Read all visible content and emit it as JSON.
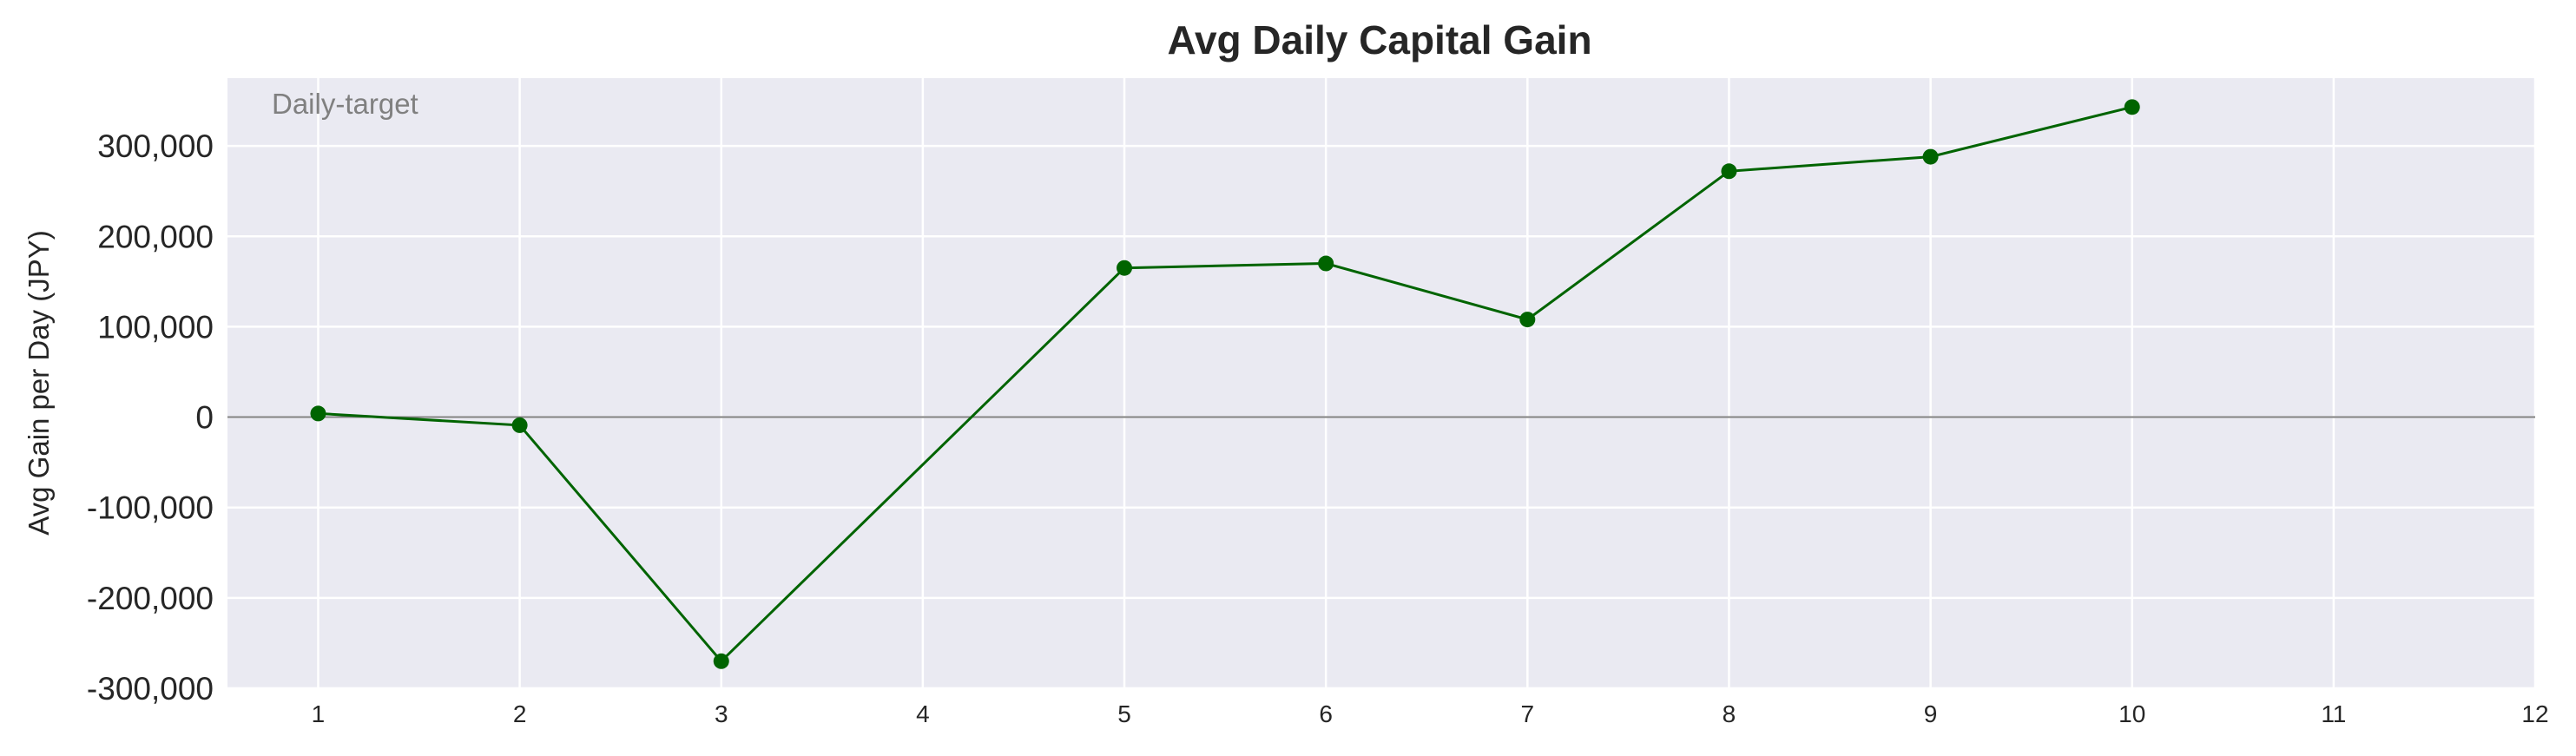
{
  "chart_data": {
    "type": "line",
    "title": "Avg Daily Capital Gain",
    "xlabel": "",
    "ylabel": "Avg Gain per Day (JPY)",
    "annotation": "Daily-target",
    "x": [
      1,
      2,
      3,
      5,
      6,
      7,
      8,
      9,
      10
    ],
    "values": [
      4000,
      -9000,
      -270000,
      165000,
      170000,
      108000,
      272000,
      288000,
      343000
    ],
    "xlim": [
      0.55,
      12
    ],
    "ylim": [
      -300000,
      375000
    ],
    "xticks": [
      1,
      2,
      3,
      4,
      5,
      6,
      7,
      8,
      9,
      10,
      11,
      12
    ],
    "yticks": [
      -300000,
      -200000,
      -100000,
      0,
      100000,
      200000,
      300000
    ],
    "ytick_labels": [
      "-300,000",
      "-200,000",
      "-100,000",
      "0",
      "100,000",
      "200,000",
      "300,000"
    ],
    "grid": true,
    "zero_line": true,
    "line_color": "#006400",
    "zero_line_color": "#808080",
    "plot_background": "#eaeaf2",
    "grid_color": "#ffffff"
  }
}
